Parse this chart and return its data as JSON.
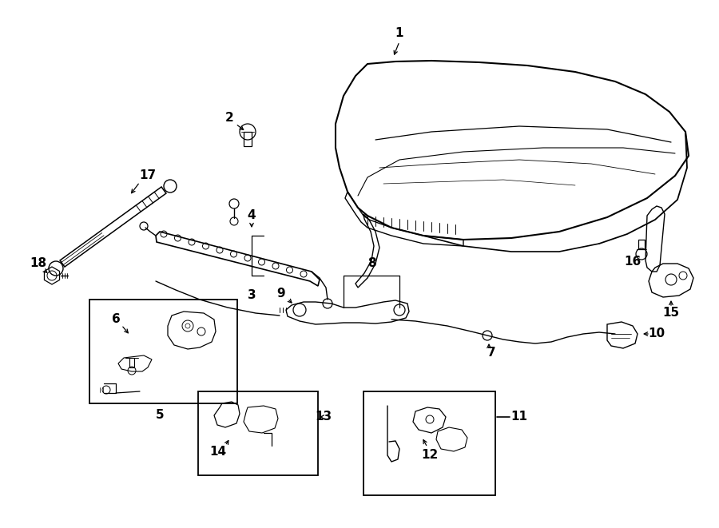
{
  "bg_color": "#ffffff",
  "lc": "#000000",
  "lw": 1.2,
  "fig_w": 9.0,
  "fig_h": 6.61,
  "dpi": 100
}
